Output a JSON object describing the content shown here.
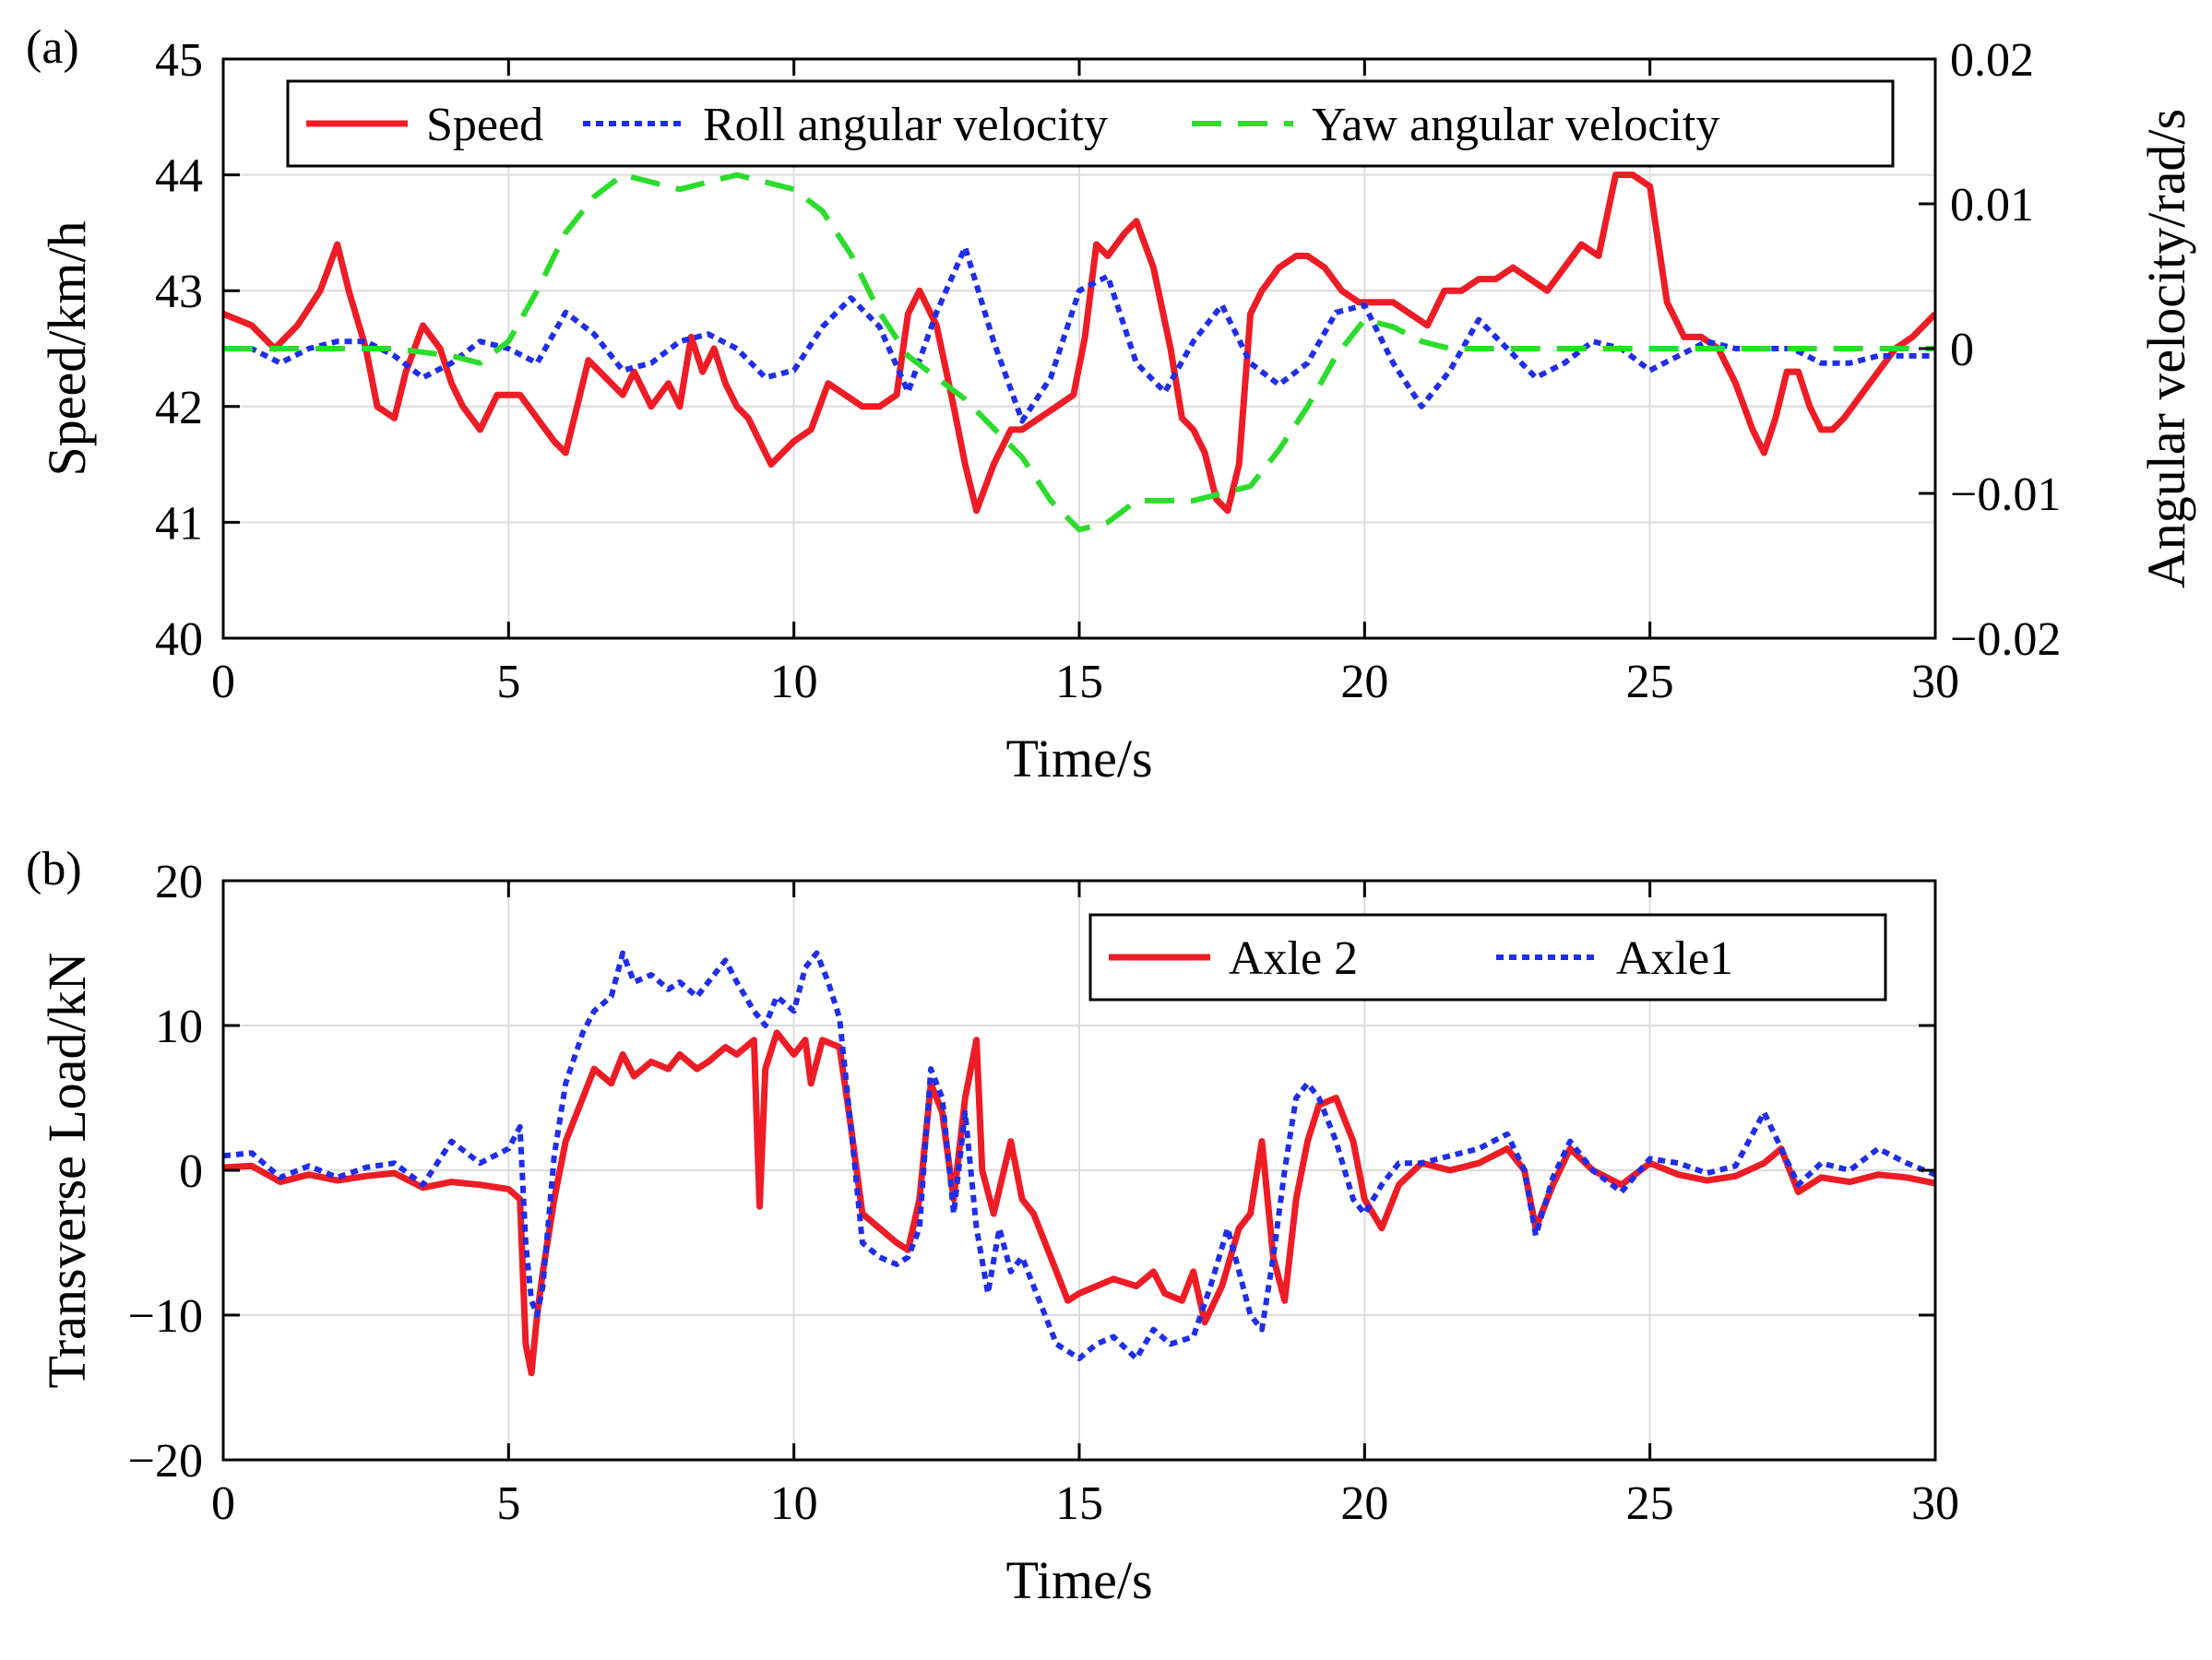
{
  "colors": {
    "speed": "#ee1c25",
    "roll": "#1f2ee8",
    "yaw": "#2cdc2c",
    "axle2": "#ee1c25",
    "axle1": "#1f2ee8"
  },
  "chart_data": [
    {
      "type": "line",
      "panel_label": "(a)",
      "xlabel": "Time/s",
      "ylabel": "Speed/km/h",
      "ylabel_right": "Angular velocity/rad/s",
      "xlim": [
        0,
        30
      ],
      "ylim": [
        40,
        45
      ],
      "ylim_right": [
        -0.02,
        0.02
      ],
      "xticks": [
        "0",
        "5",
        "10",
        "15",
        "20",
        "25",
        "30"
      ],
      "yticks": [
        "40",
        "41",
        "42",
        "43",
        "44",
        "45"
      ],
      "yticks_right": [
        "−0.02",
        "−0.01",
        "0",
        "0.01",
        "0.02"
      ],
      "grid": true,
      "legend_position": "top",
      "series": [
        {
          "name": "Speed",
          "axis": "left",
          "style": "solid",
          "x": [
            0,
            0.5,
            0.9,
            1.3,
            1.7,
            2.0,
            2.2,
            2.5,
            2.7,
            3.0,
            3.2,
            3.5,
            3.8,
            4.0,
            4.2,
            4.5,
            4.8,
            5.2,
            5.5,
            5.8,
            6.0,
            6.2,
            6.4,
            6.6,
            6.8,
            7.0,
            7.2,
            7.5,
            7.8,
            8.0,
            8.2,
            8.4,
            8.6,
            8.8,
            9.0,
            9.2,
            9.4,
            9.6,
            9.8,
            10.0,
            10.3,
            10.6,
            10.9,
            11.2,
            11.5,
            11.8,
            12.0,
            12.2,
            12.5,
            12.8,
            13.0,
            13.2,
            13.5,
            13.8,
            14.0,
            14.3,
            14.6,
            14.9,
            15.1,
            15.3,
            15.5,
            15.8,
            16.0,
            16.3,
            16.6,
            16.8,
            17.0,
            17.2,
            17.4,
            17.6,
            17.8,
            18.0,
            18.2,
            18.5,
            18.8,
            19.0,
            19.3,
            19.6,
            19.9,
            20.2,
            20.5,
            20.8,
            21.1,
            21.4,
            21.7,
            22.0,
            22.3,
            22.6,
            22.9,
            23.2,
            23.5,
            23.8,
            24.1,
            24.4,
            24.7,
            25.0,
            25.3,
            25.6,
            25.9,
            26.2,
            26.5,
            26.8,
            27.0,
            27.2,
            27.4,
            27.6,
            27.8,
            28.0,
            28.2,
            28.4,
            28.7,
            29.0,
            29.3,
            29.6,
            30.0
          ],
          "values": [
            42.8,
            42.7,
            42.5,
            42.7,
            43.0,
            43.4,
            43.0,
            42.5,
            42.0,
            41.9,
            42.3,
            42.7,
            42.5,
            42.2,
            42.0,
            41.8,
            42.1,
            42.1,
            41.9,
            41.7,
            41.6,
            42.0,
            42.4,
            42.3,
            42.2,
            42.1,
            42.3,
            42.0,
            42.2,
            42.0,
            42.6,
            42.3,
            42.5,
            42.2,
            42.0,
            41.9,
            41.7,
            41.5,
            41.6,
            41.7,
            41.8,
            42.2,
            42.1,
            42.0,
            42.0,
            42.1,
            42.8,
            43.0,
            42.7,
            42.0,
            41.5,
            41.1,
            41.5,
            41.8,
            41.8,
            41.9,
            42.0,
            42.1,
            42.6,
            43.4,
            43.3,
            43.5,
            43.6,
            43.2,
            42.5,
            41.9,
            41.8,
            41.6,
            41.2,
            41.1,
            41.5,
            42.8,
            43.0,
            43.2,
            43.3,
            43.3,
            43.2,
            43.0,
            42.9,
            42.9,
            42.9,
            42.8,
            42.7,
            43.0,
            43.0,
            43.1,
            43.1,
            43.2,
            43.1,
            43.0,
            43.2,
            43.4,
            43.3,
            44.0,
            44.0,
            43.9,
            42.9,
            42.6,
            42.6,
            42.5,
            42.2,
            41.8,
            41.6,
            41.9,
            42.3,
            42.3,
            42.0,
            41.8,
            41.8,
            41.9,
            42.1,
            42.3,
            42.5,
            42.6,
            42.8
          ]
        },
        {
          "name": "Roll angular velocity",
          "axis": "right",
          "style": "dotted",
          "x": [
            0,
            0.5,
            1.0,
            1.5,
            2.0,
            2.5,
            3.0,
            3.5,
            4.0,
            4.5,
            5.0,
            5.5,
            6.0,
            6.5,
            7.0,
            7.5,
            8.0,
            8.5,
            9.0,
            9.5,
            10.0,
            10.5,
            11.0,
            11.5,
            12.0,
            12.5,
            13.0,
            13.5,
            14.0,
            14.5,
            15.0,
            15.5,
            16.0,
            16.5,
            17.0,
            17.5,
            18.0,
            18.5,
            19.0,
            19.5,
            20.0,
            20.5,
            21.0,
            21.5,
            22.0,
            22.5,
            23.0,
            23.5,
            24.0,
            24.5,
            25.0,
            25.5,
            26.0,
            26.5,
            27.0,
            27.5,
            28.0,
            28.5,
            29.0,
            29.5,
            30.0
          ],
          "values": [
            0.0,
            0.0,
            -0.001,
            0.0,
            0.0005,
            0.0005,
            -0.0005,
            -0.002,
            -0.001,
            0.0005,
            0.0,
            -0.001,
            0.0025,
            0.001,
            -0.0015,
            -0.001,
            0.0005,
            0.001,
            0.0,
            -0.002,
            -0.0015,
            0.0015,
            0.0035,
            0.0015,
            -0.003,
            0.0025,
            0.007,
            0.0005,
            -0.005,
            -0.002,
            0.004,
            0.005,
            -0.001,
            -0.003,
            0.0005,
            0.003,
            -0.001,
            -0.0025,
            -0.001,
            0.0025,
            0.003,
            -0.001,
            -0.004,
            -0.0015,
            0.002,
            0.0,
            -0.002,
            -0.001,
            0.0005,
            0.0,
            -0.0015,
            -0.0005,
            0.0005,
            0.0,
            0.0,
            0.0,
            -0.001,
            -0.001,
            -0.0005,
            -0.0005,
            -0.0005
          ]
        },
        {
          "name": "Yaw angular velocity",
          "axis": "right",
          "style": "dashed",
          "x": [
            0,
            1.0,
            2.0,
            3.0,
            4.0,
            4.5,
            5.0,
            5.5,
            6.0,
            6.5,
            7.0,
            7.5,
            8.0,
            8.5,
            9.0,
            9.5,
            10.0,
            10.5,
            11.0,
            11.5,
            12.0,
            12.5,
            13.0,
            13.5,
            14.0,
            14.5,
            15.0,
            15.5,
            16.0,
            16.5,
            17.0,
            17.5,
            18.0,
            18.5,
            19.0,
            19.5,
            20.0,
            20.5,
            21.0,
            21.5,
            22.0,
            23.0,
            24.0,
            25.0,
            26.0,
            27.0,
            28.0,
            29.0,
            30.0
          ],
          "values": [
            0.0,
            0.0,
            0.0,
            0.0,
            -0.0005,
            -0.001,
            0.0005,
            0.004,
            0.008,
            0.0105,
            0.012,
            0.0115,
            0.011,
            0.0115,
            0.012,
            0.0115,
            0.011,
            0.0095,
            0.0065,
            0.0025,
            -0.0005,
            -0.002,
            -0.0035,
            -0.0055,
            -0.0075,
            -0.0105,
            -0.0125,
            -0.012,
            -0.0105,
            -0.0105,
            -0.0105,
            -0.01,
            -0.0095,
            -0.007,
            -0.004,
            -0.0005,
            0.002,
            0.0015,
            0.0005,
            0.0,
            0.0,
            0.0,
            0.0,
            0.0,
            0.0,
            0.0,
            0.0,
            0.0,
            0.0
          ]
        }
      ]
    },
    {
      "type": "line",
      "panel_label": "(b)",
      "xlabel": "Time/s",
      "ylabel": "Transverse Load/kN",
      "xlim": [
        0,
        30
      ],
      "ylim": [
        -20,
        20
      ],
      "xticks": [
        "0",
        "5",
        "10",
        "15",
        "20",
        "25",
        "30"
      ],
      "yticks": [
        "−20",
        "−10",
        "0",
        "10",
        "20"
      ],
      "grid": true,
      "legend_position": "top-right",
      "series": [
        {
          "name": "Axle 2",
          "style": "solid",
          "x": [
            0,
            0.5,
            1.0,
            1.5,
            2.0,
            2.5,
            3.0,
            3.5,
            4.0,
            4.5,
            5.0,
            5.2,
            5.3,
            5.4,
            5.5,
            5.6,
            5.8,
            6.0,
            6.3,
            6.5,
            6.8,
            7.0,
            7.2,
            7.5,
            7.8,
            8.0,
            8.3,
            8.5,
            8.8,
            9.0,
            9.3,
            9.4,
            9.5,
            9.7,
            10.0,
            10.2,
            10.3,
            10.5,
            10.8,
            11.0,
            11.2,
            11.5,
            11.8,
            12.0,
            12.2,
            12.4,
            12.6,
            12.8,
            13.0,
            13.2,
            13.3,
            13.5,
            13.8,
            14.0,
            14.2,
            14.5,
            14.8,
            15.0,
            15.3,
            15.6,
            16.0,
            16.3,
            16.5,
            16.8,
            17.0,
            17.2,
            17.5,
            17.8,
            18.0,
            18.2,
            18.4,
            18.6,
            18.8,
            19.0,
            19.2,
            19.5,
            19.8,
            20.0,
            20.3,
            20.6,
            21.0,
            21.5,
            22.0,
            22.5,
            22.8,
            23.0,
            23.3,
            23.6,
            24.0,
            24.5,
            25.0,
            25.5,
            26.0,
            26.5,
            27.0,
            27.3,
            27.6,
            28.0,
            28.5,
            29.0,
            29.5,
            30.0
          ],
          "values": [
            0.2,
            0.3,
            -0.8,
            -0.3,
            -0.7,
            -0.4,
            -0.2,
            -1.2,
            -0.8,
            -1.0,
            -1.3,
            -2.0,
            -12.0,
            -14.0,
            -10.0,
            -7.0,
            -2.0,
            2.0,
            5.0,
            7.0,
            6.0,
            8.0,
            6.5,
            7.5,
            7.0,
            8.0,
            7.0,
            7.5,
            8.5,
            8.0,
            9.0,
            -2.5,
            7.0,
            9.5,
            8.0,
            9.0,
            6.0,
            9.0,
            8.5,
            3.0,
            -3.0,
            -4.0,
            -5.0,
            -5.5,
            -2.0,
            6.0,
            4.0,
            -2.0,
            5.0,
            9.0,
            0.0,
            -3.0,
            2.0,
            -2.0,
            -3.0,
            -6.0,
            -9.0,
            -8.5,
            -8.0,
            -7.5,
            -8.0,
            -7.0,
            -8.5,
            -9.0,
            -7.0,
            -10.5,
            -8.0,
            -4.0,
            -3.0,
            2.0,
            -6.0,
            -9.0,
            -2.0,
            2.0,
            4.5,
            5.0,
            2.0,
            -2.0,
            -4.0,
            -1.0,
            0.5,
            0.0,
            0.5,
            1.5,
            0.0,
            -4.0,
            -1.0,
            1.5,
            0.0,
            -1.0,
            0.5,
            -0.3,
            -0.7,
            -0.4,
            0.5,
            1.5,
            -1.5,
            -0.5,
            -0.8,
            -0.3,
            -0.5,
            -0.9
          ]
        },
        {
          "name": "Axle1",
          "style": "dotted",
          "x": [
            0,
            0.5,
            1.0,
            1.5,
            2.0,
            2.5,
            3.0,
            3.5,
            4.0,
            4.5,
            5.0,
            5.2,
            5.3,
            5.4,
            5.5,
            5.6,
            5.8,
            6.0,
            6.3,
            6.5,
            6.8,
            7.0,
            7.2,
            7.5,
            7.8,
            8.0,
            8.3,
            8.5,
            8.8,
            9.0,
            9.3,
            9.5,
            9.7,
            10.0,
            10.2,
            10.4,
            10.6,
            10.8,
            11.0,
            11.2,
            11.5,
            11.8,
            12.0,
            12.2,
            12.4,
            12.6,
            12.8,
            13.0,
            13.2,
            13.4,
            13.6,
            13.8,
            14.0,
            14.3,
            14.6,
            15.0,
            15.3,
            15.6,
            16.0,
            16.3,
            16.6,
            17.0,
            17.3,
            17.6,
            18.0,
            18.2,
            18.4,
            18.6,
            18.8,
            19.0,
            19.2,
            19.5,
            19.8,
            20.0,
            20.3,
            20.6,
            21.0,
            21.5,
            22.0,
            22.5,
            22.8,
            23.0,
            23.3,
            23.6,
            24.0,
            24.5,
            25.0,
            25.5,
            26.0,
            26.5,
            27.0,
            27.3,
            27.6,
            28.0,
            28.5,
            29.0,
            29.5,
            30.0
          ],
          "values": [
            1.0,
            1.2,
            -0.5,
            0.3,
            -0.5,
            0.2,
            0.5,
            -1.0,
            2.0,
            0.5,
            1.5,
            3.0,
            -5.0,
            -9.0,
            -10.0,
            -8.0,
            1.0,
            6.0,
            9.5,
            11.0,
            12.0,
            15.0,
            13.0,
            13.5,
            12.5,
            13.0,
            12.0,
            13.0,
            14.5,
            13.0,
            11.0,
            10.0,
            12.0,
            11.0,
            14.0,
            15.0,
            13.0,
            10.5,
            3.0,
            -5.0,
            -6.0,
            -6.5,
            -6.0,
            -4.0,
            7.0,
            5.0,
            -3.0,
            4.0,
            -4.0,
            -8.5,
            -4.0,
            -7.0,
            -6.0,
            -9.0,
            -12.0,
            -13.0,
            -12.0,
            -11.5,
            -13.0,
            -11.0,
            -12.0,
            -11.5,
            -8.0,
            -4.0,
            -10.0,
            -11.0,
            -6.0,
            0.0,
            5.0,
            6.0,
            5.0,
            2.0,
            -2.0,
            -3.0,
            -1.0,
            0.5,
            0.5,
            1.0,
            1.5,
            2.5,
            0.0,
            -4.5,
            -0.5,
            2.0,
            0.0,
            -1.5,
            0.8,
            0.5,
            -0.2,
            0.3,
            4.0,
            1.5,
            -1.0,
            0.5,
            0.0,
            1.5,
            0.5,
            -0.3
          ]
        }
      ]
    }
  ]
}
